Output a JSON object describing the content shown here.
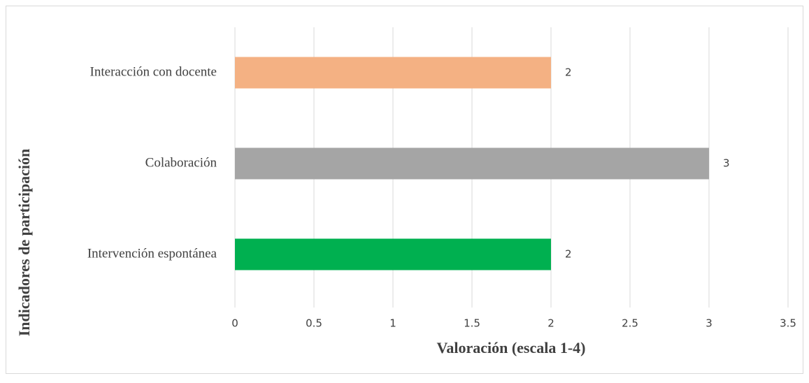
{
  "chart_data": {
    "type": "barh",
    "xlabel": "Valoración (escala 1-4)",
    "ylabel": "Indicadores de participación",
    "categories": [
      "Interacción con docente",
      "Colaboración",
      "Intervención espontánea"
    ],
    "values": [
      2,
      3,
      2
    ],
    "colors": [
      "#f4b183",
      "#a5a5a5",
      "#00b050"
    ],
    "xlim": [
      0,
      3.5
    ],
    "xticks": [
      0,
      0.5,
      1,
      1.5,
      2,
      2.5,
      3,
      3.5
    ],
    "grid": true
  }
}
